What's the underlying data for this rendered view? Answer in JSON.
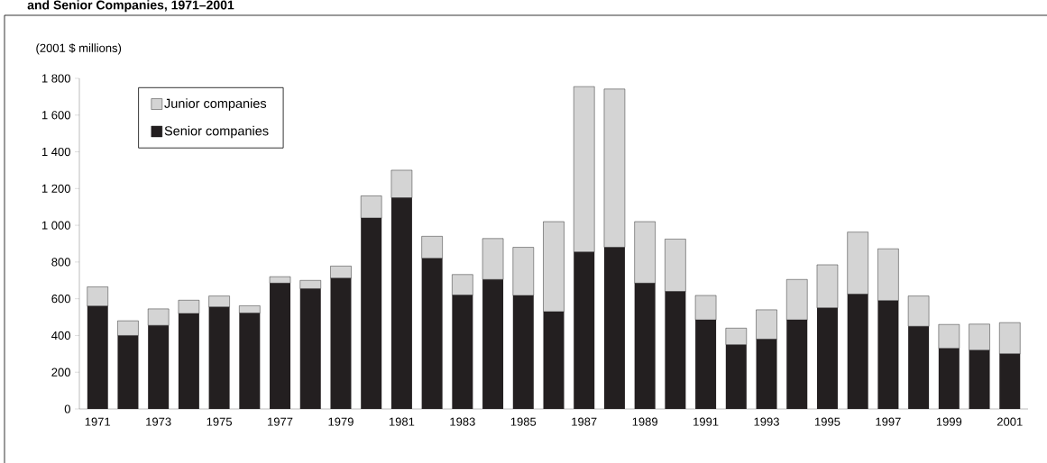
{
  "chart_data": {
    "type": "bar",
    "stacked": true,
    "title": "and Senior Companies, 1971–2001",
    "ylabel": "(2001 $ millions)",
    "categories": [
      "1971",
      null,
      "1973",
      null,
      "1975",
      null,
      "1977",
      null,
      "1979",
      null,
      "1981",
      null,
      "1983",
      null,
      "1985",
      null,
      "1987",
      null,
      "1989",
      null,
      "1991",
      null,
      "1993",
      null,
      "1995",
      null,
      "1997",
      null,
      "1999",
      null,
      "2001"
    ],
    "series": [
      {
        "name": "Senior companies",
        "color": "#231f20",
        "values": [
          560,
          400,
          455,
          520,
          555,
          522,
          685,
          655,
          712,
          1040,
          1150,
          820,
          620,
          705,
          618,
          530,
          855,
          880,
          685,
          640,
          485,
          350,
          380,
          485,
          550,
          625,
          590,
          450,
          330,
          320,
          300
        ]
      },
      {
        "name": "Junior companies",
        "color": "#d4d4d4",
        "values": [
          105,
          80,
          90,
          72,
          60,
          40,
          35,
          45,
          66,
          120,
          150,
          120,
          112,
          223,
          262,
          490,
          900,
          862,
          335,
          285,
          133,
          90,
          160,
          220,
          235,
          338,
          282,
          165,
          130,
          142,
          170
        ]
      }
    ],
    "ylim": [
      0,
      1800
    ],
    "yticks": [
      0,
      200,
      400,
      600,
      800,
      {
        "value": 1000,
        "label": "1 000"
      },
      {
        "value": 1200,
        "label": "1 200"
      },
      {
        "value": 1400,
        "label": "1 400"
      },
      {
        "value": 1600,
        "label": "1 600"
      },
      {
        "value": 1800,
        "label": "1 800"
      }
    ],
    "legend": "top left",
    "grid": false
  }
}
